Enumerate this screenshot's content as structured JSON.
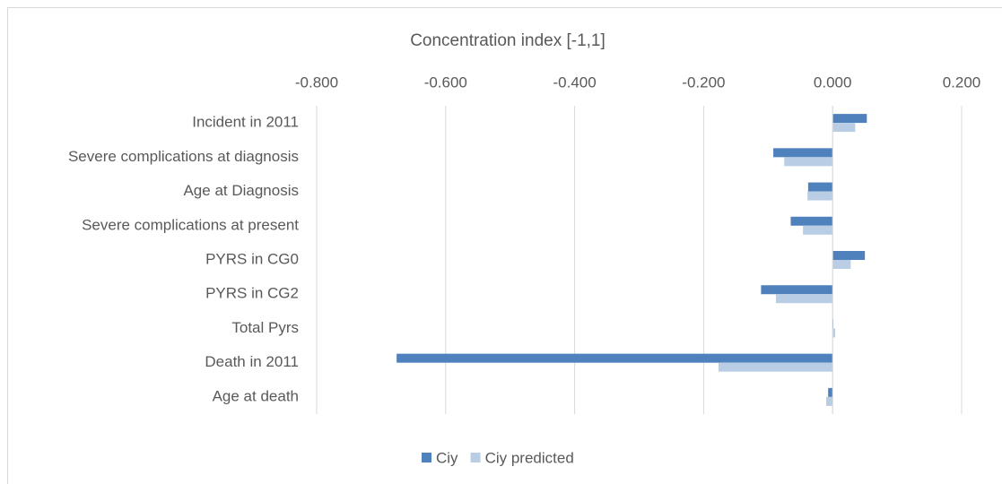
{
  "chart_data": {
    "type": "hbar",
    "title": "Concentration index [-1,1]",
    "categories": [
      "Incident in 2011",
      "Severe complications at diagnosis",
      "Age at Diagnosis",
      "Severe complications at present",
      "PYRS in CG0",
      "PYRS in CG2",
      "Total Pyrs",
      "Death in 2011",
      "Age at death"
    ],
    "series": [
      {
        "name": "Ciy",
        "color": "#4f81bd",
        "values": [
          0.053,
          -0.092,
          -0.038,
          -0.065,
          0.05,
          -0.111,
          0.001,
          -0.676,
          -0.007
        ]
      },
      {
        "name": "Ciy predicted",
        "color": "#b9cde5",
        "values": [
          0.035,
          -0.075,
          -0.039,
          -0.046,
          0.028,
          -0.088,
          0.004,
          -0.177,
          -0.01
        ]
      }
    ],
    "xlim": [
      -0.8,
      0.2
    ],
    "xticks": [
      {
        "value": -0.8,
        "label": "-0.800"
      },
      {
        "value": -0.6,
        "label": "-0.600"
      },
      {
        "value": -0.4,
        "label": "-0.400"
      },
      {
        "value": -0.2,
        "label": "-0.200"
      },
      {
        "value": 0,
        "label": "0.000"
      },
      {
        "value": 0.2,
        "label": "0.200"
      }
    ],
    "grid": true,
    "legend": "bottom"
  }
}
